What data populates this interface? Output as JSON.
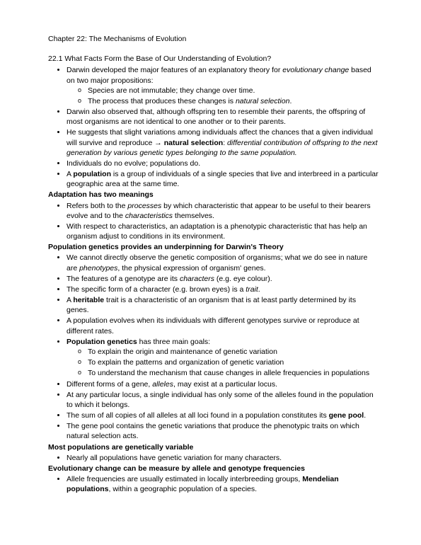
{
  "chapter_title": "Chapter 22: The Mechanisms of Evolution",
  "section_title": "22.1 What Facts Form the Base of Our Understanding of Evolution?",
  "b1": {
    "i1_pre": "Darwin developed the major features of an explanatory theory for ",
    "i1_em": "evolutionary change",
    "i1_post": " based on two major propositions:",
    "i1_sub1": "Species are not immutable; they change over time.",
    "i1_sub2_pre": "The process that produces these changes is ",
    "i1_sub2_em": "natural selection",
    "i1_sub2_post": ".",
    "i2": "Darwin also observed that, although offspring ten to resemble their parents, the offspring of most organisms are not identical to one another or to their parents.",
    "i3_a": "He suggests that slight variations among individuals affect the chances that a given individual will survive and reproduce → ",
    "i3_b": "natural selection",
    "i3_c": ": ",
    "i3_d": "differential contribution of offspring to the next generation by various genetic types belonging to the same population.",
    "i4": "Individuals do no evolve; populations do.",
    "i5_a": "A ",
    "i5_b": "population",
    "i5_c": " is a group of individuals of a single species that live and interbreed in a particular geographic area at the same time."
  },
  "h2": "Adaptation has two meanings",
  "b2": {
    "i1_a": "Refers both to the ",
    "i1_b": "processes",
    "i1_c": " by which characteristic that appear to be useful to their bearers evolve and to the ",
    "i1_d": "characteristics",
    "i1_e": " themselves.",
    "i2": "With respect to characteristics, an adaptation is a phenotypic characteristic that has help an organism adjust to conditions in its environment."
  },
  "h3": "Population genetics provides an underpinning for Darwin's Theory",
  "b3": {
    "i1_a": "We cannot directly observe the genetic composition of organisms; what we do see in nature are ",
    "i1_b": "phenotypes",
    "i1_c": ", the physical expression of organism' genes.",
    "i2_a": "The features of a genotype are its ",
    "i2_b": "characters",
    "i2_c": " (e.g. eye colour).",
    "i3_a": "The specific form of a character (e.g. brown eyes) is a ",
    "i3_b": "trait",
    "i3_c": ".",
    "i4_a": "A ",
    "i4_b": "heritable",
    "i4_c": " trait is a characteristic of an organism that is at least partly determined by its genes.",
    "i5": "A population evolves when its individuals with different genotypes survive or reproduce at different rates.",
    "i6_a": "Population genetics",
    "i6_b": " has three main goals:",
    "i6_s1": "To explain the origin and maintenance of genetic variation",
    "i6_s2": "To explain the patterns and organization of genetic variation",
    "i6_s3": "To understand the mechanism that cause changes in allele frequencies in populations",
    "i7_a": "Different forms of a gene, ",
    "i7_b": "alleles",
    "i7_c": ", may exist at a particular locus.",
    "i8": "At any particular locus, a single individual has only some of the alleles found in the population to which it belongs.",
    "i9_a": "The sum of all copies of all alleles at all loci found in a population constitutes its ",
    "i9_b": "gene pool",
    "i9_c": ".",
    "i10": "The gene pool contains the genetic variations that produce the phenotypic traits on which natural selection acts."
  },
  "h4": "Most populations are genetically variable",
  "b4": {
    "i1": "Nearly all populations have genetic variation for many characters."
  },
  "h5": "Evolutionary change can be measure by allele and genotype frequencies",
  "b5": {
    "i1_a": "Allele frequencies are usually estimated in locally interbreeding groups, ",
    "i1_b": "Mendelian populations",
    "i1_c": ", within a geographic population of a species."
  }
}
